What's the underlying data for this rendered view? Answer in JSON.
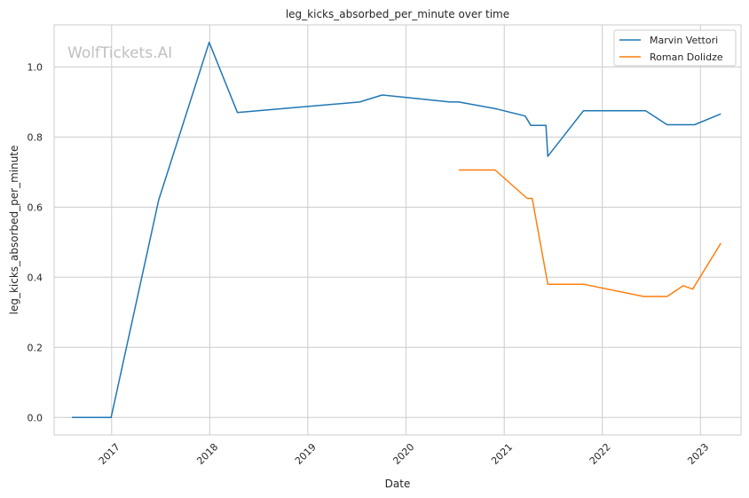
{
  "chart_data": {
    "type": "line",
    "title": "leg_kicks_absorbed_per_minute over time",
    "xlabel": "Date",
    "ylabel": "leg_kicks_absorbed_per_minute",
    "watermark": "WolfTickets.AI",
    "xlim": [
      "2016-06-01",
      "2023-06-01"
    ],
    "ylim": [
      -0.05,
      1.12
    ],
    "x_ticks": [
      "2017",
      "2018",
      "2019",
      "2020",
      "2021",
      "2022",
      "2023"
    ],
    "y_ticks": [
      "0.0",
      "0.2",
      "0.4",
      "0.6",
      "0.8",
      "1.0"
    ],
    "grid": true,
    "legend_position": "top-right",
    "series": [
      {
        "name": "Marvin Vettori",
        "color": "#1f77b4",
        "points": [
          [
            "2016-08-06",
            0.0
          ],
          [
            "2016-12-30",
            0.0
          ],
          [
            "2017-06-25",
            0.62
          ],
          [
            "2017-12-30",
            1.07
          ],
          [
            "2018-04-14",
            0.87
          ],
          [
            "2019-07-13",
            0.9
          ],
          [
            "2019-10-05",
            0.92
          ],
          [
            "2020-06-13",
            0.9
          ],
          [
            "2020-07-16",
            0.9
          ],
          [
            "2020-12-05",
            0.88
          ],
          [
            "2021-03-20",
            0.86
          ],
          [
            "2021-04-10",
            0.833
          ],
          [
            "2021-06-05",
            0.833
          ],
          [
            "2021-06-12",
            0.745
          ],
          [
            "2021-10-23",
            0.875
          ],
          [
            "2022-06-11",
            0.875
          ],
          [
            "2022-08-30",
            0.835
          ],
          [
            "2022-12-10",
            0.835
          ],
          [
            "2023-03-18",
            0.866
          ]
        ]
      },
      {
        "name": "Roman Dolidze",
        "color": "#ff7f0e",
        "points": [
          [
            "2020-07-16",
            0.706
          ],
          [
            "2020-11-28",
            0.706
          ],
          [
            "2021-03-27",
            0.625
          ],
          [
            "2021-04-15",
            0.625
          ],
          [
            "2021-06-12",
            0.38
          ],
          [
            "2021-10-23",
            0.38
          ],
          [
            "2022-06-04",
            0.345
          ],
          [
            "2022-08-30",
            0.345
          ],
          [
            "2022-10-29",
            0.376
          ],
          [
            "2022-12-03",
            0.366
          ],
          [
            "2023-03-18",
            0.497
          ]
        ]
      }
    ]
  }
}
